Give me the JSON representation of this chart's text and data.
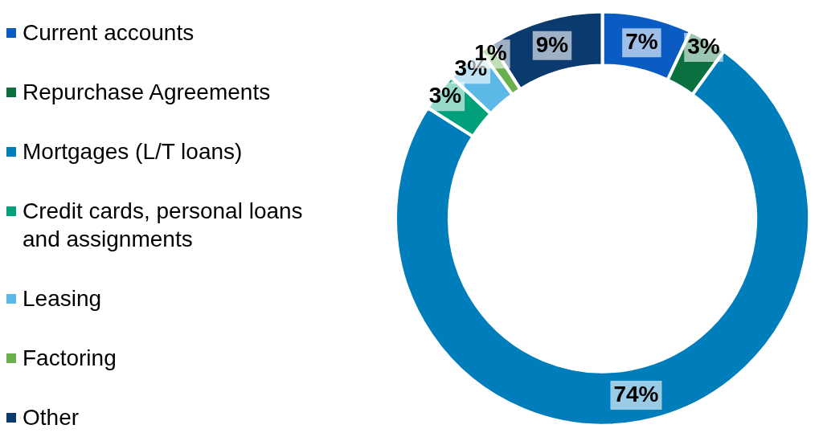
{
  "chart_data": {
    "type": "donut",
    "categories": [
      "Current accounts",
      "Repurchase Agreements",
      "Mortgages (L/T loans)",
      "Credit cards, personal loans and assignments",
      "Leasing",
      "Factoring",
      "Other"
    ],
    "values": [
      7,
      3,
      74,
      3,
      3,
      1,
      9
    ],
    "colors": [
      "#0a5cc2",
      "#0a7040",
      "#007dbb",
      "#00a07a",
      "#5cb8e6",
      "#6ab04c",
      "#0b3a6e"
    ],
    "value_labels": [
      "7%",
      "3%",
      "74%",
      "3%",
      "3%",
      "1%",
      "9%"
    ],
    "legend": "left"
  }
}
